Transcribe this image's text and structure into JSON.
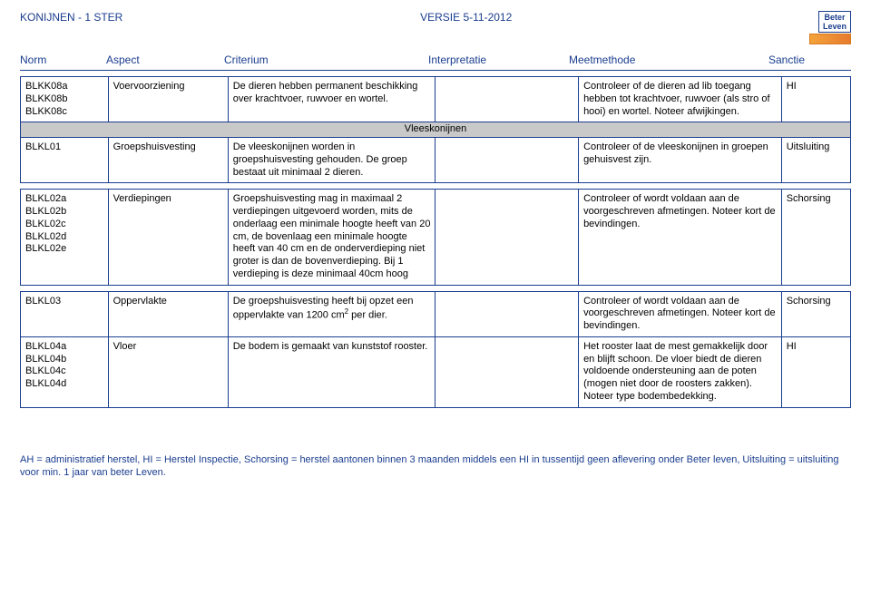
{
  "header": {
    "doc_title": "KONIJNEN - 1 STER",
    "version": "VERSIE 5-11-2012",
    "logo_line1": "Beter",
    "logo_line2": "Leven",
    "columns": {
      "norm": "Norm",
      "aspect": "Aspect",
      "criterium": "Criterium",
      "interpretatie": "Interpretatie",
      "meetmethode": "Meetmethode",
      "sanctie": "Sanctie"
    }
  },
  "subheader": "Vleeskonijnen",
  "rows": [
    {
      "norms": [
        "BLKK08a",
        "BLKK08b",
        "BLKK08c"
      ],
      "aspect": "Voervoorziening",
      "criterium": "De dieren hebben permanent beschikking over krachtvoer, ruwvoer en wortel.",
      "interpretatie": "",
      "meetmethode": "Controleer of de dieren ad lib toegang hebben tot krachtvoer, ruwvoer (als stro of hooi) en wortel. Noteer afwijkingen.",
      "sanctie": "HI"
    },
    {
      "norms": [
        "BLKL01"
      ],
      "aspect": "Groepshuisvesting",
      "criterium": "De vleeskonijnen worden in groepshuisvesting gehouden. De groep bestaat uit minimaal 2 dieren.",
      "interpretatie": "",
      "meetmethode": "Controleer of de vleeskonijnen in groepen gehuisvest zijn.",
      "sanctie": "Uitsluiting"
    },
    {
      "norms": [
        "BLKL02a",
        "BLKL02b",
        "BLKL02c",
        "BLKL02d",
        "BLKL02e"
      ],
      "aspect": "Verdiepingen",
      "criterium": "Groepshuisvesting mag in maximaal 2 verdiepingen uitgevoerd worden, mits de onderlaag een minimale hoogte heeft van 20 cm, de bovenlaag een minimale hoogte heeft van 40 cm en de onderverdieping niet groter is dan de bovenverdieping. Bij 1 verdieping is deze minimaal 40cm hoog",
      "interpretatie": "",
      "meetmethode": "Controleer of wordt voldaan aan de voorgeschreven afmetingen. Noteer kort de bevindingen.",
      "sanctie": "Schorsing"
    },
    {
      "norms": [
        "BLKL03"
      ],
      "aspect": "Oppervlakte",
      "criterium_html": "De groepshuisvesting heeft bij opzet een oppervlakte van 1200 cm<sup>2</sup> per dier.",
      "interpretatie": "",
      "meetmethode": "Controleer of wordt voldaan aan de voorgeschreven afmetingen. Noteer kort de bevindingen.",
      "sanctie": "Schorsing"
    },
    {
      "norms": [
        "BLKL04a",
        "BLKL04b",
        "BLKL04c",
        "BLKL04d"
      ],
      "aspect": "Vloer",
      "criterium": "De bodem is gemaakt van kunststof rooster.",
      "interpretatie": "",
      "meetmethode": "Het rooster laat de mest gemakkelijk door en blijft schoon. De vloer biedt de dieren voldoende ondersteuning aan de poten (mogen niet door de roosters zakken). Noteer type bodembedekking.",
      "sanctie": "HI"
    }
  ],
  "footnote": "AH = administratief herstel, HI = Herstel Inspectie, Schorsing = herstel aantonen binnen 3 maanden middels een HI in tussentijd geen aflevering onder Beter leven, Uitsluiting = uitsluiting voor min. 1 jaar van beter Leven."
}
